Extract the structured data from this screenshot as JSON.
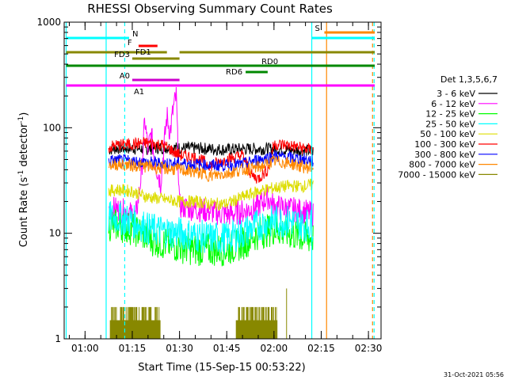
{
  "chart_data": {
    "type": "line",
    "title": "RHESSI Observing Summary Count Rates",
    "xlabel": "Start Time (15-Sep-15 00:53:22)",
    "ylabel_main": "Count Rate (s",
    "ylabel_sup1": "-1",
    "ylabel_mid": " detector",
    "ylabel_sup2": "-1",
    "ylabel_end": ")",
    "timestamp": "31-Oct-2021 05:56",
    "y_scale": "log",
    "ylim": [
      1,
      1000
    ],
    "xlim_minutes": [
      53.37,
      154.0
    ],
    "x_ticks": [
      {
        "t": 60,
        "label": "01:00"
      },
      {
        "t": 75,
        "label": "01:15"
      },
      {
        "t": 90,
        "label": "01:30"
      },
      {
        "t": 105,
        "label": "01:45"
      },
      {
        "t": 120,
        "label": "02:00"
      },
      {
        "t": 135,
        "label": "02:15"
      },
      {
        "t": 150,
        "label": "02:30"
      }
    ],
    "y_ticks": [
      {
        "v": 1,
        "label": "1"
      },
      {
        "v": 10,
        "label": "10"
      },
      {
        "v": 100,
        "label": "100"
      },
      {
        "v": 1000,
        "label": "1000"
      }
    ],
    "legend_title": "Det 1,3,5,6,7",
    "legend_placement": "right",
    "series": [
      {
        "name": "3 - 6 keV",
        "color": "#000000",
        "points": [
          [
            67.5,
            62
          ],
          [
            70,
            64
          ],
          [
            75,
            64
          ],
          [
            80,
            63
          ],
          [
            85,
            65
          ],
          [
            90,
            64
          ],
          [
            95,
            64
          ],
          [
            100,
            63
          ],
          [
            105,
            62
          ],
          [
            110,
            63
          ],
          [
            115,
            63
          ],
          [
            120,
            63
          ],
          [
            125,
            62
          ],
          [
            130,
            61
          ],
          [
            132.5,
            60
          ]
        ]
      },
      {
        "name": "6 - 12 keV",
        "color": "#ff00ff",
        "points": [
          [
            67.5,
            17
          ],
          [
            70,
            17
          ],
          [
            73,
            16
          ],
          [
            75,
            15
          ],
          [
            76,
            14
          ],
          [
            77,
            22
          ],
          [
            78,
            40
          ],
          [
            79,
            120
          ],
          [
            80,
            60
          ],
          [
            81,
            90
          ],
          [
            82,
            50
          ],
          [
            84,
            30
          ],
          [
            86,
            130
          ],
          [
            87,
            90
          ],
          [
            88,
            150
          ],
          [
            89,
            200
          ],
          [
            90,
            18
          ],
          [
            95,
            17
          ],
          [
            100,
            16
          ],
          [
            105,
            15
          ],
          [
            110,
            16
          ],
          [
            115,
            18
          ],
          [
            118,
            22
          ],
          [
            120,
            18
          ],
          [
            125,
            17
          ],
          [
            130,
            16
          ],
          [
            132.5,
            15
          ]
        ]
      },
      {
        "name": "12 - 25 keV",
        "color": "#00ff00",
        "points": [
          [
            67.5,
            12
          ],
          [
            70,
            12
          ],
          [
            75,
            11
          ],
          [
            78,
            10
          ],
          [
            80,
            9
          ],
          [
            85,
            8
          ],
          [
            90,
            7.5
          ],
          [
            95,
            7
          ],
          [
            100,
            7
          ],
          [
            105,
            7
          ],
          [
            110,
            8
          ],
          [
            115,
            10
          ],
          [
            120,
            11
          ],
          [
            125,
            10
          ],
          [
            130,
            9
          ],
          [
            132.5,
            9
          ]
        ]
      },
      {
        "name": "25 - 50 keV",
        "color": "#00ffff",
        "points": [
          [
            67.5,
            14
          ],
          [
            70,
            14
          ],
          [
            75,
            13
          ],
          [
            78,
            12
          ],
          [
            80,
            11
          ],
          [
            85,
            10.5
          ],
          [
            90,
            10
          ],
          [
            95,
            9.5
          ],
          [
            100,
            9
          ],
          [
            105,
            9
          ],
          [
            110,
            10
          ],
          [
            115,
            12
          ],
          [
            120,
            13
          ],
          [
            125,
            13
          ],
          [
            130,
            12
          ],
          [
            132.5,
            12
          ]
        ]
      },
      {
        "name": "50 - 100 keV",
        "color": "#dddd00",
        "points": [
          [
            67.5,
            25
          ],
          [
            70,
            26
          ],
          [
            75,
            25
          ],
          [
            78,
            23
          ],
          [
            80,
            22
          ],
          [
            85,
            21
          ],
          [
            90,
            20
          ],
          [
            95,
            20
          ],
          [
            100,
            19
          ],
          [
            105,
            19
          ],
          [
            110,
            22
          ],
          [
            115,
            25
          ],
          [
            120,
            27
          ],
          [
            125,
            28
          ],
          [
            130,
            28
          ],
          [
            132.5,
            29
          ]
        ]
      },
      {
        "name": "100 - 300 keV",
        "color": "#ff0000",
        "points": [
          [
            67.5,
            65
          ],
          [
            70,
            68
          ],
          [
            75,
            70
          ],
          [
            80,
            72
          ],
          [
            85,
            68
          ],
          [
            90,
            55
          ],
          [
            95,
            52
          ],
          [
            100,
            44
          ],
          [
            105,
            50
          ],
          [
            110,
            55
          ],
          [
            113,
            35
          ],
          [
            115,
            33
          ],
          [
            118,
            40
          ],
          [
            120,
            70
          ],
          [
            125,
            68
          ],
          [
            130,
            63
          ],
          [
            132.5,
            62
          ]
        ]
      },
      {
        "name": "300 - 800 keV",
        "color": "#0000ff",
        "points": [
          [
            67.5,
            48
          ],
          [
            70,
            49
          ],
          [
            75,
            48
          ],
          [
            80,
            47
          ],
          [
            85,
            46
          ],
          [
            90,
            46
          ],
          [
            95,
            45
          ],
          [
            100,
            44
          ],
          [
            105,
            44
          ],
          [
            110,
            45
          ],
          [
            115,
            50
          ],
          [
            120,
            54
          ],
          [
            125,
            52
          ],
          [
            130,
            50
          ],
          [
            132.5,
            48
          ]
        ]
      },
      {
        "name": "800 - 7000 keV",
        "color": "#ff8800",
        "points": [
          [
            67.5,
            44
          ],
          [
            70,
            45
          ],
          [
            75,
            44
          ],
          [
            80,
            43
          ],
          [
            85,
            41
          ],
          [
            90,
            40
          ],
          [
            95,
            38
          ],
          [
            100,
            35
          ],
          [
            105,
            37
          ],
          [
            110,
            40
          ],
          [
            115,
            42
          ],
          [
            120,
            48
          ],
          [
            125,
            46
          ],
          [
            130,
            42
          ],
          [
            132.5,
            42
          ]
        ]
      },
      {
        "name": "7000 - 15000 keV",
        "color": "#888800",
        "points": [
          [
            67.5,
            1
          ],
          [
            132.5,
            1
          ]
        ]
      }
    ],
    "flag_bars": [
      {
        "label": "N",
        "color": "#00ffff",
        "y": 48,
        "segments": [
          [
            54,
            74
          ],
          [
            132,
            152
          ]
        ]
      },
      {
        "label": "S",
        "color": "#ff8800",
        "y": 41,
        "segments": [
          [
            136,
            152
          ]
        ]
      },
      {
        "label": "F",
        "color": "#ff0000",
        "y": 58,
        "segments": [
          [
            77,
            83
          ]
        ]
      },
      {
        "label": "FD1",
        "color": "#888800",
        "y": 66,
        "segments": [
          [
            54,
            86
          ],
          [
            90,
            152
          ]
        ]
      },
      {
        "label": "FD3",
        "color": "#888800",
        "y": 74,
        "segments": [
          [
            75,
            90
          ]
        ]
      },
      {
        "label": "RD0",
        "color": "#008800",
        "y": 83,
        "segments": [
          [
            54,
            152
          ]
        ]
      },
      {
        "label": "RD6",
        "color": "#008800",
        "y": 91,
        "segments": [
          [
            111,
            118
          ]
        ]
      },
      {
        "label": "A0",
        "color": "#cc00cc",
        "y": 101,
        "segments": [
          [
            75,
            90
          ]
        ]
      },
      {
        "label": "A1",
        "color": "#ff00ff",
        "y": 108,
        "segments": [
          [
            54,
            152
          ]
        ]
      }
    ],
    "vlines": [
      {
        "t": 54.0,
        "color": "#00ffff",
        "style": "solid"
      },
      {
        "t": 66.7,
        "color": "#00ffff",
        "style": "solid"
      },
      {
        "t": 72.6,
        "color": "#00ffff",
        "style": "dashed"
      },
      {
        "t": 132.0,
        "color": "#00ffff",
        "style": "solid"
      },
      {
        "t": 136.7,
        "color": "#ff8800",
        "style": "solid"
      },
      {
        "t": 151.3,
        "color": "#ff8800",
        "style": "dashed"
      },
      {
        "t": 151.8,
        "color": "#00ffff",
        "style": "dashed"
      }
    ],
    "burst_region": [
      [
        68,
        84
      ],
      [
        108,
        121
      ]
    ]
  }
}
